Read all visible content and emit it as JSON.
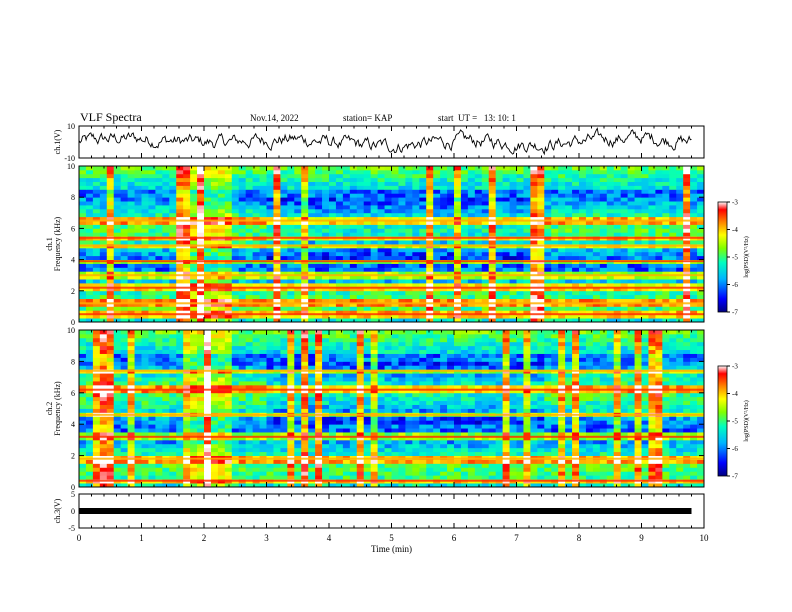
{
  "header": {
    "title": "VLF Spectra",
    "date": "Nov.14, 2022",
    "station": "station= KAP",
    "start_ut": "start  UT =   13: 10: 1"
  },
  "chart_data": [
    {
      "type": "line",
      "panel": "ch1_waveform",
      "ylabel": "ch.1(V)",
      "ylim": [
        -10,
        10
      ],
      "yticks": [
        "10",
        "-10"
      ],
      "xlim": [
        0,
        10
      ],
      "data_extent_min": 9.8,
      "series": [
        {
          "description_values": [
            3,
            -4,
            2,
            -6,
            4,
            -3,
            5,
            -2,
            1,
            6,
            -5,
            3,
            -1,
            4,
            -6,
            2,
            5,
            -3,
            0,
            4,
            -4,
            3,
            6,
            -2,
            1,
            -5,
            4,
            2,
            -3,
            5,
            0,
            -4,
            3
          ]
        }
      ]
    },
    {
      "type": "heatmap",
      "panel": "ch1_spectrogram",
      "ylabel": "ch.1\nFrequency (kHz)",
      "ylabel_line1": "ch.1",
      "ylabel_line2": "Frequency (kHz)",
      "xlim": [
        0,
        10
      ],
      "ylim": [
        0,
        10
      ],
      "yticks": [
        "0",
        "2",
        "4",
        "6",
        "8",
        "10"
      ],
      "bright_bands_khz": [
        0.5,
        1.2,
        2.2,
        3.0,
        3.9,
        4.9,
        5.4,
        6.5
      ],
      "burst_time_min": [
        1.8,
        2.45
      ],
      "colorbar": {
        "min": -7,
        "max": -3,
        "ticks": [
          "-3",
          "-4",
          "-5",
          "-6",
          "-7"
        ],
        "label": "log(PSD)(V²/Hz)"
      }
    },
    {
      "type": "heatmap",
      "panel": "ch2_spectrogram",
      "ylabel": "ch.2\nFrequency (kHz)",
      "ylabel_line1": "ch.2",
      "ylabel_line2": "Frequency (kHz)",
      "xlim": [
        0,
        10
      ],
      "ylim": [
        0,
        10
      ],
      "yticks": [
        "0",
        "2",
        "4",
        "6",
        "8",
        "10"
      ],
      "bright_bands_khz": [
        0.4,
        1.8,
        3.2,
        4.6,
        6.2,
        7.4
      ],
      "burst_time_min": [
        1.8,
        2.45
      ],
      "colorbar": {
        "min": -7,
        "max": -3,
        "ticks": [
          "-3",
          "-4",
          "-5",
          "-6",
          "-7"
        ],
        "label": "log(PSD)(V²/Hz)"
      }
    },
    {
      "type": "line",
      "panel": "ch3_signal",
      "ylabel": "ch.3(V)",
      "ylim": [
        -5,
        5
      ],
      "yticks": [
        "5",
        "0",
        "-5"
      ],
      "constant_value": 0,
      "xlim": [
        0,
        10
      ],
      "xticks": [
        "0",
        "1",
        "2",
        "3",
        "4",
        "5",
        "6",
        "7",
        "8",
        "9",
        "10"
      ],
      "xlabel": "Time (min)"
    }
  ],
  "colors": {
    "axis": "#000000",
    "waveform": "#000000",
    "colormap": [
      "#000080",
      "#0000ff",
      "#00b4ff",
      "#00ffc0",
      "#80ff00",
      "#ffff00",
      "#ff8000",
      "#ff0000",
      "#ffffff"
    ]
  }
}
